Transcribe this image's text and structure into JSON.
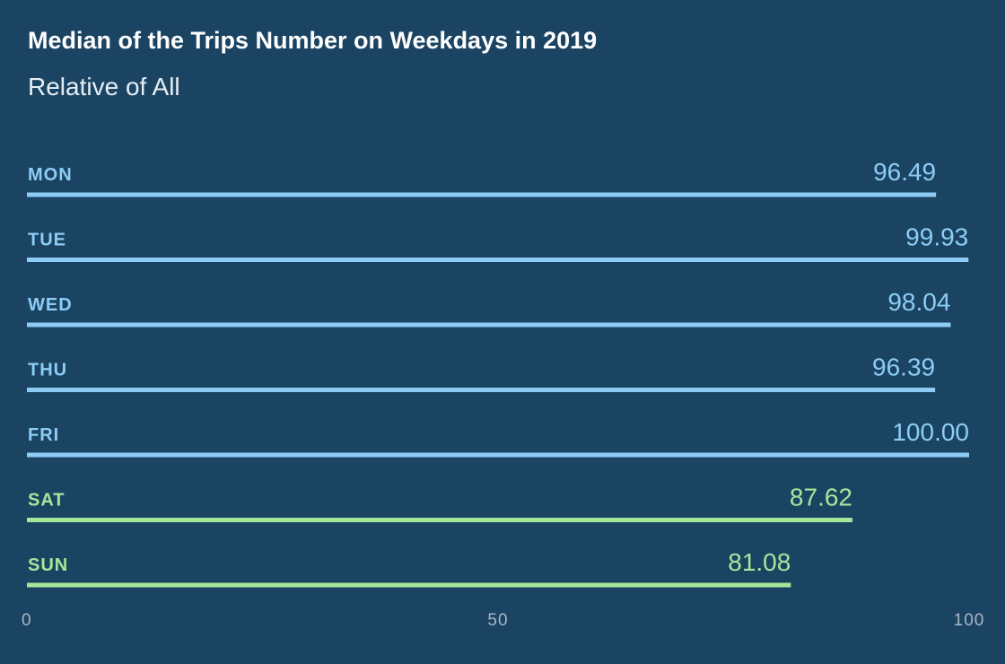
{
  "chart_data": {
    "type": "bar",
    "orientation": "horizontal",
    "title": "Median of the Trips Number on Weekdays in 2019",
    "subtitle": "Relative of All",
    "categories": [
      "MON",
      "TUE",
      "WED",
      "THU",
      "FRI",
      "SAT",
      "SUN"
    ],
    "values": [
      96.49,
      99.93,
      98.04,
      96.39,
      100.0,
      87.62,
      81.08
    ],
    "value_labels": [
      "96.49",
      "99.93",
      "98.04",
      "96.39",
      "100.00",
      "87.62",
      "81.08"
    ],
    "groups": [
      "weekday",
      "weekday",
      "weekday",
      "weekday",
      "weekday",
      "weekend",
      "weekend"
    ],
    "colors": {
      "weekday": "#8dcdf5",
      "weekend": "#a4e79b"
    },
    "xlim": [
      0,
      100
    ],
    "xticks": [
      "0",
      "50",
      "100"
    ],
    "grid": false,
    "legend": "none"
  }
}
